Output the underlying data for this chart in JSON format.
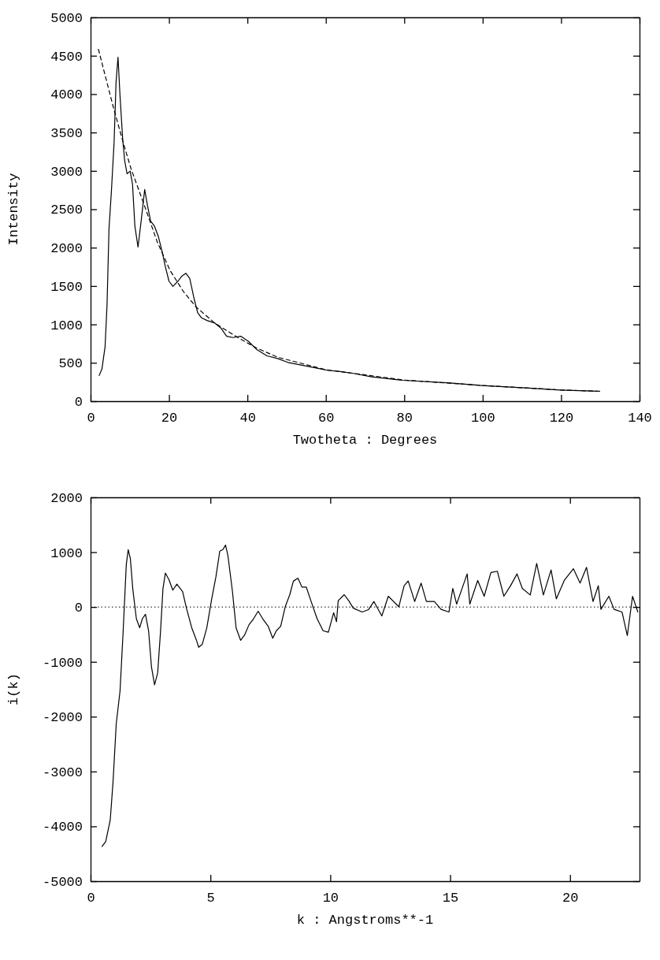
{
  "chart_data": [
    {
      "type": "line",
      "xlabel": "Twotheta : Degrees",
      "ylabel": "Intensity",
      "xlim": [
        0,
        140
      ],
      "xticks": [
        0,
        20,
        40,
        60,
        80,
        100,
        120,
        140
      ],
      "ylim": [
        0,
        5000
      ],
      "yticks": [
        0,
        500,
        1000,
        1500,
        2000,
        2500,
        3000,
        3500,
        4000,
        4500,
        5000
      ],
      "series": [
        {
          "color": "#000000",
          "line_style": "solid",
          "x": [
            2.2,
            2.9,
            3.7,
            4.2,
            4.7,
            5.3,
            6.0,
            6.5,
            7.0,
            7.5,
            8.2,
            8.7,
            9.3,
            10.1,
            10.7,
            11.3,
            12.1,
            12.9,
            13.8,
            14.5,
            15.3,
            16.3,
            17.3,
            18.3,
            19.0,
            20.0,
            21.0,
            22.3,
            23.3,
            24.3,
            25.3,
            26.3,
            27.3,
            28.3,
            29.7,
            31.7,
            33.3,
            34.7,
            36.3,
            38.3,
            40.3,
            42.3,
            45.0,
            47.7,
            50.3,
            53.7,
            57.0,
            60.3,
            63.7,
            67,
            71.7,
            79.6,
            91.7,
            99.7,
            111.7,
            119.7,
            129.3
          ],
          "values": [
            335,
            420,
            710,
            1256,
            2246,
            2724,
            3372,
            4157,
            4481,
            3986,
            3406,
            3133,
            2962,
            2997,
            2826,
            2280,
            2007,
            2348,
            2758,
            2553,
            2348,
            2280,
            2143,
            1939,
            1768,
            1563,
            1495,
            1563,
            1631,
            1666,
            1597,
            1358,
            1154,
            1085,
            1051,
            1017,
            949,
            846,
            829,
            846,
            778,
            676,
            590,
            556,
            505,
            471,
            437,
            403,
            386,
            362,
            317,
            272,
            238,
            205,
            170,
            146,
            129
          ]
        },
        {
          "color": "#000000",
          "line_style": "dashed",
          "x": [
            2,
            5.7,
            8.3,
            10.3,
            13.7,
            17,
            20.3,
            23.7,
            27,
            31.7,
            37,
            42.3,
            47.7,
            60,
            80,
            100,
            120,
            130
          ],
          "values": [
            4584,
            3850,
            3372,
            3031,
            2553,
            2075,
            1700,
            1427,
            1222,
            1017,
            846,
            693,
            573,
            410,
            275,
            205,
            146,
            129
          ]
        }
      ]
    },
    {
      "type": "line",
      "xlabel": "k : Angstroms**-1",
      "ylabel": "i(k)",
      "xlim": [
        0,
        22.9
      ],
      "xticks": [
        0,
        5,
        10,
        15,
        20
      ],
      "ylim": [
        -5000,
        2000
      ],
      "yticks": [
        -5000,
        -4000,
        -3000,
        -2000,
        -1000,
        0,
        1000,
        2000
      ],
      "ref_lines": [
        {
          "axis": "y",
          "value": 0,
          "line_style": "dotted",
          "color": "#000000"
        }
      ],
      "series": [
        {
          "color": "#000000",
          "line_style": "solid",
          "x": [
            0.48,
            0.63,
            0.82,
            0.94,
            1.07,
            1.23,
            1.36,
            1.49,
            1.57,
            1.66,
            1.76,
            1.91,
            2.05,
            2.16,
            2.29,
            2.42,
            2.54,
            2.67,
            2.8,
            2.92,
            3.02,
            3.12,
            3.27,
            3.43,
            3.6,
            3.84,
            4.0,
            4.22,
            4.41,
            4.51,
            4.66,
            4.85,
            5.04,
            5.23,
            5.39,
            5.52,
            5.63,
            5.73,
            5.92,
            6.07,
            6.26,
            6.42,
            6.61,
            6.8,
            6.99,
            7.18,
            7.41,
            7.6,
            7.75,
            7.93,
            8.12,
            8.31,
            8.46,
            8.65,
            8.82,
            9.0,
            9.19,
            9.45,
            9.7,
            9.92,
            10.14,
            10.26,
            10.33,
            10.58,
            10.77,
            10.96,
            11.33,
            11.59,
            11.82,
            12.15,
            12.42,
            12.86,
            13.08,
            13.25,
            13.52,
            13.79,
            14.01,
            14.34,
            14.62,
            14.95,
            15.11,
            15.27,
            15.71,
            15.82,
            16.15,
            16.42,
            16.7,
            16.97,
            17.24,
            17.52,
            17.79,
            18.01,
            18.34,
            18.61,
            18.89,
            19.21,
            19.43,
            19.76,
            20.14,
            20.42,
            20.69,
            20.96,
            21.18,
            21.29,
            21.62,
            21.84,
            22.17,
            22.39,
            22.61,
            22.83
          ],
          "values": [
            -4367,
            -4280,
            -3885,
            -3173,
            -2132,
            -1529,
            -433,
            773,
            1047,
            882,
            334,
            -214,
            -378,
            -214,
            -132,
            -433,
            -1091,
            -1419,
            -1200,
            -433,
            334,
            619,
            499,
            307,
            416,
            279,
            -22,
            -378,
            -597,
            -734,
            -680,
            -378,
            115,
            553,
            1019,
            1047,
            1129,
            937,
            279,
            -378,
            -608,
            -515,
            -323,
            -214,
            -77,
            -214,
            -351,
            -570,
            -433,
            -351,
            5,
            225,
            471,
            526,
            362,
            362,
            115,
            -214,
            -433,
            -460,
            -104,
            -268,
            115,
            225,
            115,
            -22,
            -91,
            -49,
            100,
            -163,
            196,
            5,
            388,
            474,
            100,
            436,
            100,
            100,
            -43,
            -91,
            340,
            53,
            604,
            53,
            484,
            196,
            628,
            652,
            196,
            388,
            604,
            340,
            220,
            795,
            220,
            675,
            148,
            484,
            699,
            436,
            723,
            100,
            388,
            -43,
            196,
            -43,
            -91,
            -522,
            196,
            -91
          ]
        }
      ]
    }
  ]
}
